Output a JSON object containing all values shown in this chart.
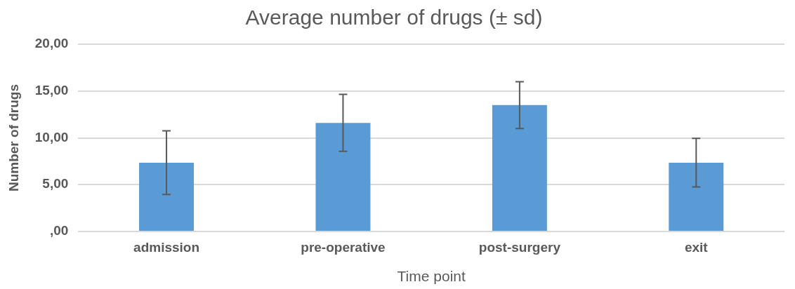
{
  "chart_data": {
    "type": "bar",
    "title": "Average number of drugs (± sd)",
    "xlabel": "Time point",
    "ylabel": "Number of drugs",
    "categories": [
      "admission",
      "pre-operative",
      "post-surgery",
      "exit"
    ],
    "values": [
      7.35,
      11.6,
      13.5,
      7.35
    ],
    "errors": [
      3.4,
      3.05,
      2.5,
      2.6
    ],
    "color": "#5b9bd5",
    "ylim": [
      0,
      20
    ],
    "yticks": [
      {
        "value": 0,
        "label": ",00"
      },
      {
        "value": 5,
        "label": "5,00"
      },
      {
        "value": 10,
        "label": "10,00"
      },
      {
        "value": 15,
        "label": "15,00"
      },
      {
        "value": 20,
        "label": "20,00"
      }
    ],
    "grid": "y",
    "legend": false
  }
}
